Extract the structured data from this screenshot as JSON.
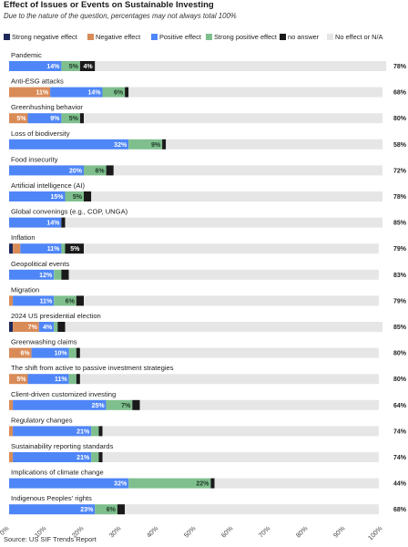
{
  "title": "Effect of Issues or Events on Sustainable Investing",
  "subtitle": "Due to the nature of the question, percentages may not always total 100%",
  "source": "Source: US SIF Trends Report",
  "colors": {
    "strong_negative": "#1f2a5a",
    "negative": "#d98b57",
    "positive": "#4f86f7",
    "strong_positive": "#7fbf8e",
    "no_answer": "#1a1a1a",
    "no_effect": "#e6e6e6"
  },
  "chart_data": {
    "type": "bar",
    "orientation": "horizontal",
    "stacked": true,
    "categories": [
      "Pandemic",
      "Anti-ESG attacks",
      "Greenhushing behavior",
      "Loss of biodiversity",
      "Food insecurity",
      "Artificial intelligence (AI)",
      "Global convenings (e.g., COP, UNGA)",
      "Inflation",
      "Geopolitical events",
      "Migration",
      "2024 US presidential election",
      "Greenwashing claims",
      "The shift from active to passive investment strategies",
      "Client-driven customized investing",
      "Regulatory changes",
      "Sustainability reporting standards",
      "Implications of climate change",
      "Indigenous Peoples' rights"
    ],
    "series": [
      {
        "name": "Strong negative effect",
        "color_key": "strong_negative",
        "values": [
          0,
          0,
          0,
          0,
          0,
          0,
          0,
          1,
          0,
          0,
          1,
          0,
          0,
          0,
          0,
          0,
          0,
          0
        ]
      },
      {
        "name": "Negative effect",
        "color_key": "negative",
        "values": [
          0,
          11,
          5,
          0,
          0,
          0,
          0,
          2,
          0,
          1,
          7,
          6,
          5,
          1,
          1,
          1,
          0,
          0
        ]
      },
      {
        "name": "Positive effect",
        "color_key": "positive",
        "values": [
          14,
          14,
          9,
          32,
          20,
          15,
          14,
          11,
          12,
          11,
          4,
          10,
          11,
          25,
          21,
          21,
          32,
          23
        ]
      },
      {
        "name": "Strong positive effect",
        "color_key": "strong_positive",
        "values": [
          5,
          6,
          5,
          9,
          6,
          5,
          0,
          1,
          2,
          6,
          1,
          2,
          2,
          7,
          2,
          2,
          22,
          6
        ]
      },
      {
        "name": "no answer",
        "color_key": "no_answer",
        "values": [
          4,
          1,
          1,
          1,
          2,
          2,
          1,
          5,
          2,
          2,
          2,
          1,
          1,
          2,
          1,
          1,
          1,
          2
        ]
      },
      {
        "name": "No effect or N/A",
        "color_key": "no_effect",
        "values": [
          78,
          68,
          80,
          58,
          72,
          78,
          85,
          79,
          83,
          79,
          85,
          80,
          80,
          64,
          74,
          74,
          44,
          68
        ]
      }
    ],
    "value_labels_shown_for": [
      "Negative effect",
      "Positive effect",
      "Strong positive effect",
      "no answer",
      "No effect or N/A"
    ],
    "xlim": [
      0,
      100
    ],
    "x_ticks": [
      "0%",
      "10%",
      "20%",
      "30%",
      "40%",
      "50%",
      "60%",
      "70%",
      "80%",
      "90%",
      "100%"
    ],
    "legend_position": "top",
    "grid": false
  }
}
